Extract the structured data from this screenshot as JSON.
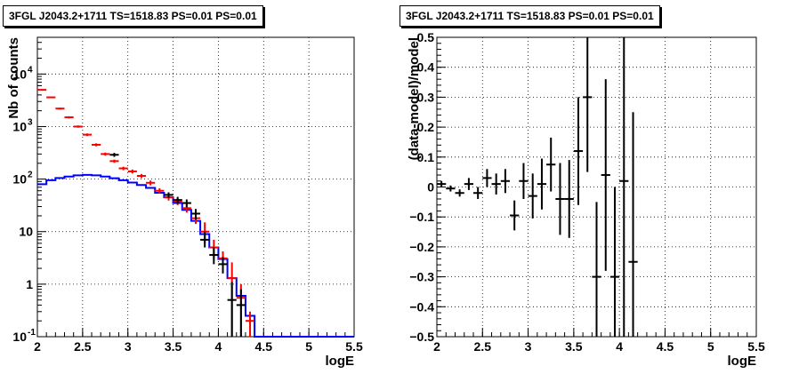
{
  "chart_data": [
    {
      "type": "line",
      "title": "3FGL J2043.2+1711 TS=1518.83 PS=0.01 PS=0.01",
      "xlabel": "logE",
      "ylabel": "Nb of counts",
      "xlim": [
        2,
        5.5
      ],
      "ylim": [
        0.1,
        50000
      ],
      "yscale": "log",
      "grid": true,
      "x_ticks": [
        "2",
        "2.5",
        "3",
        "3.5",
        "4",
        "4.5",
        "5",
        "5.5"
      ],
      "y_ticks": [
        {
          "value": 0.1,
          "label": "10",
          "exp": "-1"
        },
        {
          "value": 1,
          "label": "1",
          "exp": ""
        },
        {
          "value": 10,
          "label": "10",
          "exp": ""
        },
        {
          "value": 100,
          "label": "10",
          "exp": "2"
        },
        {
          "value": 1000,
          "label": "10",
          "exp": "3"
        },
        {
          "value": 10000,
          "label": "10",
          "exp": "4"
        }
      ],
      "bin_edges": [
        2.0,
        2.1,
        2.2,
        2.3,
        2.4,
        2.5,
        2.6,
        2.7,
        2.8,
        2.9,
        3.0,
        3.1,
        3.2,
        3.3,
        3.4,
        3.5,
        3.6,
        3.7,
        3.8,
        3.9,
        4.0,
        4.1,
        4.2,
        4.3,
        4.4,
        4.5,
        4.6,
        4.7,
        4.8,
        4.9,
        5.0,
        5.1,
        5.2,
        5.3,
        5.4,
        5.5
      ],
      "series": [
        {
          "color": "#0000ff",
          "style": "step",
          "values": [
            80,
            95,
            105,
            112,
            118,
            120,
            118,
            112,
            104,
            95,
            86,
            77,
            68,
            55,
            45,
            35,
            26,
            16,
            9,
            5,
            3,
            1.3,
            0.6,
            0.25,
            0.1,
            0.1,
            0.1,
            0.1,
            0.1,
            0.1,
            0.1,
            0.1,
            0.1,
            0.1,
            0.1
          ]
        },
        {
          "color": "#ff0000",
          "style": "errorbar",
          "points": [
            {
              "x": 2.05,
              "y": 5000,
              "lo": 4850,
              "hi": 5150
            },
            {
              "x": 2.15,
              "y": 3600,
              "lo": 3480,
              "hi": 3720
            },
            {
              "x": 2.25,
              "y": 2200,
              "lo": 2110,
              "hi": 2290
            },
            {
              "x": 2.35,
              "y": 1500,
              "lo": 1430,
              "hi": 1570
            },
            {
              "x": 2.45,
              "y": 1000,
              "lo": 950,
              "hi": 1050
            },
            {
              "x": 2.55,
              "y": 700,
              "lo": 660,
              "hi": 740
            },
            {
              "x": 2.65,
              "y": 450,
              "lo": 420,
              "hi": 480
            },
            {
              "x": 2.75,
              "y": 300,
              "lo": 280,
              "hi": 320
            },
            {
              "x": 2.85,
              "y": 220,
              "lo": 205,
              "hi": 235
            },
            {
              "x": 2.95,
              "y": 160,
              "lo": 148,
              "hi": 172
            },
            {
              "x": 3.05,
              "y": 140,
              "lo": 128,
              "hi": 152
            },
            {
              "x": 3.15,
              "y": 115,
              "lo": 105,
              "hi": 125
            },
            {
              "x": 3.25,
              "y": 85,
              "lo": 76,
              "hi": 94
            },
            {
              "x": 3.35,
              "y": 60,
              "lo": 53,
              "hi": 67
            },
            {
              "x": 3.45,
              "y": 45,
              "lo": 39,
              "hi": 51
            },
            {
              "x": 3.55,
              "y": 38,
              "lo": 32,
              "hi": 44
            },
            {
              "x": 3.65,
              "y": 28,
              "lo": 23,
              "hi": 33
            },
            {
              "x": 3.75,
              "y": 18,
              "lo": 14,
              "hi": 22
            },
            {
              "x": 3.85,
              "y": 10,
              "lo": 6,
              "hi": 15
            },
            {
              "x": 3.95,
              "y": 5,
              "lo": 3,
              "hi": 7
            },
            {
              "x": 4.05,
              "y": 3.1,
              "lo": 2.1,
              "hi": 4.2
            },
            {
              "x": 4.15,
              "y": 1.3,
              "lo": 0.1,
              "hi": 2.6
            },
            {
              "x": 4.25,
              "y": 0.55,
              "lo": 0.1,
              "hi": 1.0
            },
            {
              "x": 4.35,
              "y": 0.2,
              "lo": 0.1,
              "hi": 0.3
            }
          ]
        },
        {
          "color": "#000000",
          "style": "errorbar",
          "points": [
            {
              "x": 2.85,
              "y": 290,
              "lo": 265,
              "hi": 315
            },
            {
              "x": 3.45,
              "y": 50,
              "lo": 44,
              "hi": 56
            },
            {
              "x": 3.55,
              "y": 40,
              "lo": 34,
              "hi": 46
            },
            {
              "x": 3.65,
              "y": 35,
              "lo": 29,
              "hi": 41
            },
            {
              "x": 3.75,
              "y": 22,
              "lo": 17,
              "hi": 27
            },
            {
              "x": 3.85,
              "y": 7,
              "lo": 5,
              "hi": 10
            },
            {
              "x": 3.95,
              "y": 3.6,
              "lo": 2.4,
              "hi": 5
            },
            {
              "x": 4.05,
              "y": 2.4,
              "lo": 1.6,
              "hi": 3.3
            },
            {
              "x": 4.15,
              "y": 0.5,
              "lo": 0.1,
              "hi": 1.1
            },
            {
              "x": 4.25,
              "y": 0.4,
              "lo": 0.1,
              "hi": 0.8
            }
          ]
        }
      ]
    },
    {
      "type": "scatter",
      "title": "3FGL J2043.2+1711 TS=1518.83 PS=0.01 PS=0.01",
      "xlabel": "logE",
      "ylabel": "(data-model)/model",
      "xlim": [
        2,
        5.5
      ],
      "ylim": [
        -0.5,
        0.5
      ],
      "grid": true,
      "x_ticks": [
        "2",
        "2.5",
        "3",
        "3.5",
        "4",
        "4.5",
        "5",
        "5.5"
      ],
      "y_ticks": [
        "-0.5",
        "-0.4",
        "-0.3",
        "-0.2",
        "-0.1",
        "0",
        "0.1",
        "0.2",
        "0.3",
        "0.4",
        "0.5"
      ],
      "series": [
        {
          "color": "#000000",
          "style": "errorbar",
          "points": [
            {
              "x": 2.05,
              "y": 0.01,
              "err": 0.01
            },
            {
              "x": 2.15,
              "y": -0.005,
              "err": 0.01
            },
            {
              "x": 2.25,
              "y": -0.02,
              "err": 0.012
            },
            {
              "x": 2.35,
              "y": 0.01,
              "err": 0.02
            },
            {
              "x": 2.45,
              "y": -0.02,
              "err": 0.02
            },
            {
              "x": 2.55,
              "y": 0.03,
              "err": 0.03
            },
            {
              "x": 2.65,
              "y": 0.01,
              "err": 0.035
            },
            {
              "x": 2.75,
              "y": 0.02,
              "err": 0.04
            },
            {
              "x": 2.85,
              "y": -0.095,
              "err": 0.05
            },
            {
              "x": 2.95,
              "y": 0.02,
              "err": 0.06
            },
            {
              "x": 3.05,
              "y": -0.03,
              "err": 0.075
            },
            {
              "x": 3.15,
              "y": 0.01,
              "err": 0.085
            },
            {
              "x": 3.25,
              "y": 0.075,
              "err": 0.09
            },
            {
              "x": 3.35,
              "y": -0.04,
              "err": 0.12
            },
            {
              "x": 3.45,
              "y": -0.04,
              "err": 0.13
            },
            {
              "x": 3.55,
              "y": 0.12,
              "err": 0.18
            },
            {
              "x": 3.65,
              "y": 0.3,
              "err": 0.25
            },
            {
              "x": 3.75,
              "y": -0.3,
              "err": 0.25
            },
            {
              "x": 3.85,
              "y": 0.04,
              "err": 0.32
            },
            {
              "x": 3.95,
              "y": -0.3,
              "err": 0.3
            },
            {
              "x": 4.05,
              "y": 0.02,
              "err": 0.8
            },
            {
              "x": 4.15,
              "y": -0.25,
              "err": 0.5
            }
          ]
        }
      ]
    }
  ]
}
